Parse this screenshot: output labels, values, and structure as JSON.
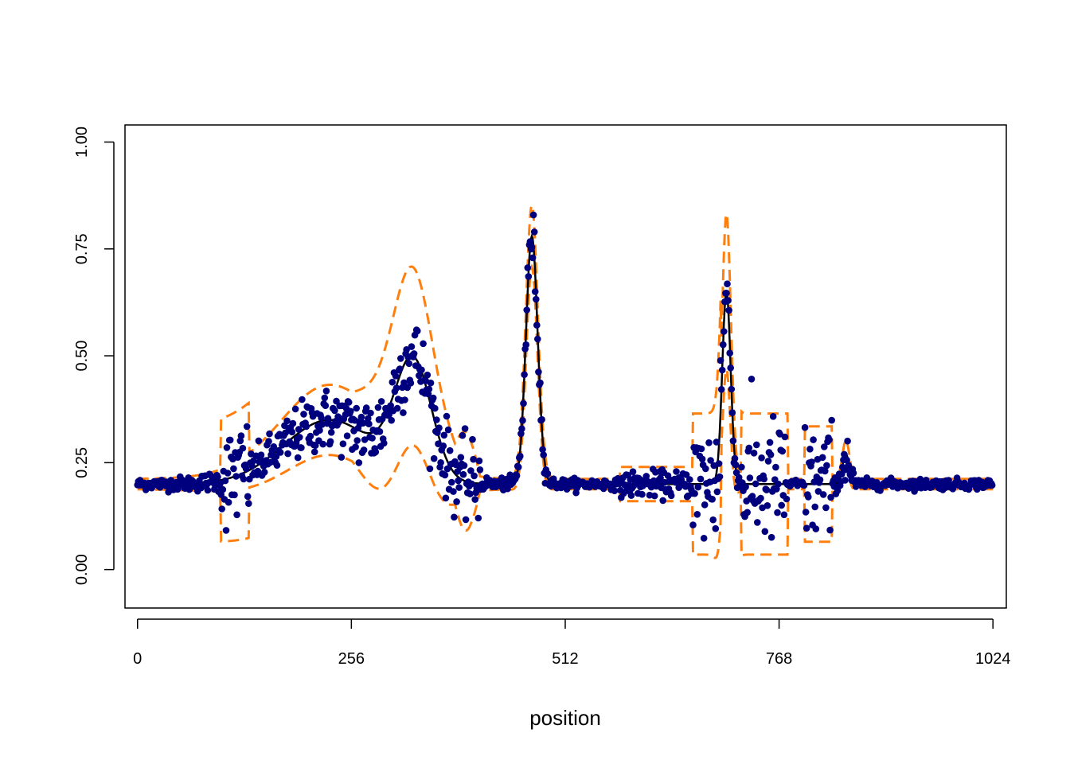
{
  "chart_data": {
    "type": "scatter",
    "title": "",
    "xlabel": "position",
    "ylabel": "",
    "xlim": [
      -15,
      1040
    ],
    "ylim": [
      -0.09,
      1.04
    ],
    "x_ticks": [
      0,
      256,
      512,
      768,
      1024
    ],
    "x_tick_labels": [
      "0",
      "256",
      "512",
      "768",
      "1024"
    ],
    "y_ticks": [
      0,
      0.25,
      0.5,
      0.75,
      1
    ],
    "y_tick_labels": [
      "0.00",
      "0.25",
      "0.50",
      "0.75",
      "1.00"
    ],
    "grid": false,
    "legend": "none",
    "colors": {
      "points": "#00007F",
      "mean_line": "#000000",
      "interval_band": "#FF7F0E"
    },
    "baseline_level": 0.2,
    "interval_halfwidth_baseline": 0.012,
    "blocks": [
      {
        "from": 100,
        "to": 133,
        "halfwidth": 0.13,
        "scatter_sd": 0.05
      },
      {
        "from": 578,
        "to": 665,
        "halfwidth": 0.04,
        "scatter_sd": 0.015
      },
      {
        "from": 665,
        "to": 698,
        "halfwidth": 0.165,
        "scatter_sd": 0.08
      },
      {
        "from": 723,
        "to": 778,
        "halfwidth": 0.165,
        "scatter_sd": 0.075
      },
      {
        "from": 799,
        "to": 831,
        "halfwidth": 0.135,
        "scatter_sd": 0.07
      }
    ],
    "bumps": [
      {
        "center": 230,
        "height": 0.15,
        "width": 55,
        "interval_halfwidth": 0.07
      },
      {
        "center": 330,
        "height": 0.27,
        "width": 22,
        "interval_halfwidth": 0.1
      },
      {
        "center": 472,
        "height": 0.58,
        "width": 7,
        "interval_halfwidth": 0.06
      },
      {
        "center": 705,
        "height": 0.45,
        "width": 5,
        "interval_halfwidth": 0.17
      },
      {
        "center": 848,
        "height": 0.07,
        "width": 4,
        "interval_halfwidth": 0.02
      }
    ],
    "interval_steps": [
      {
        "from": 257,
        "to": 400,
        "extra_halfwidth": 0.07
      },
      {
        "from": 380,
        "to": 410,
        "extra_halfwidth": 0.08
      }
    ],
    "n_points": 1024
  }
}
